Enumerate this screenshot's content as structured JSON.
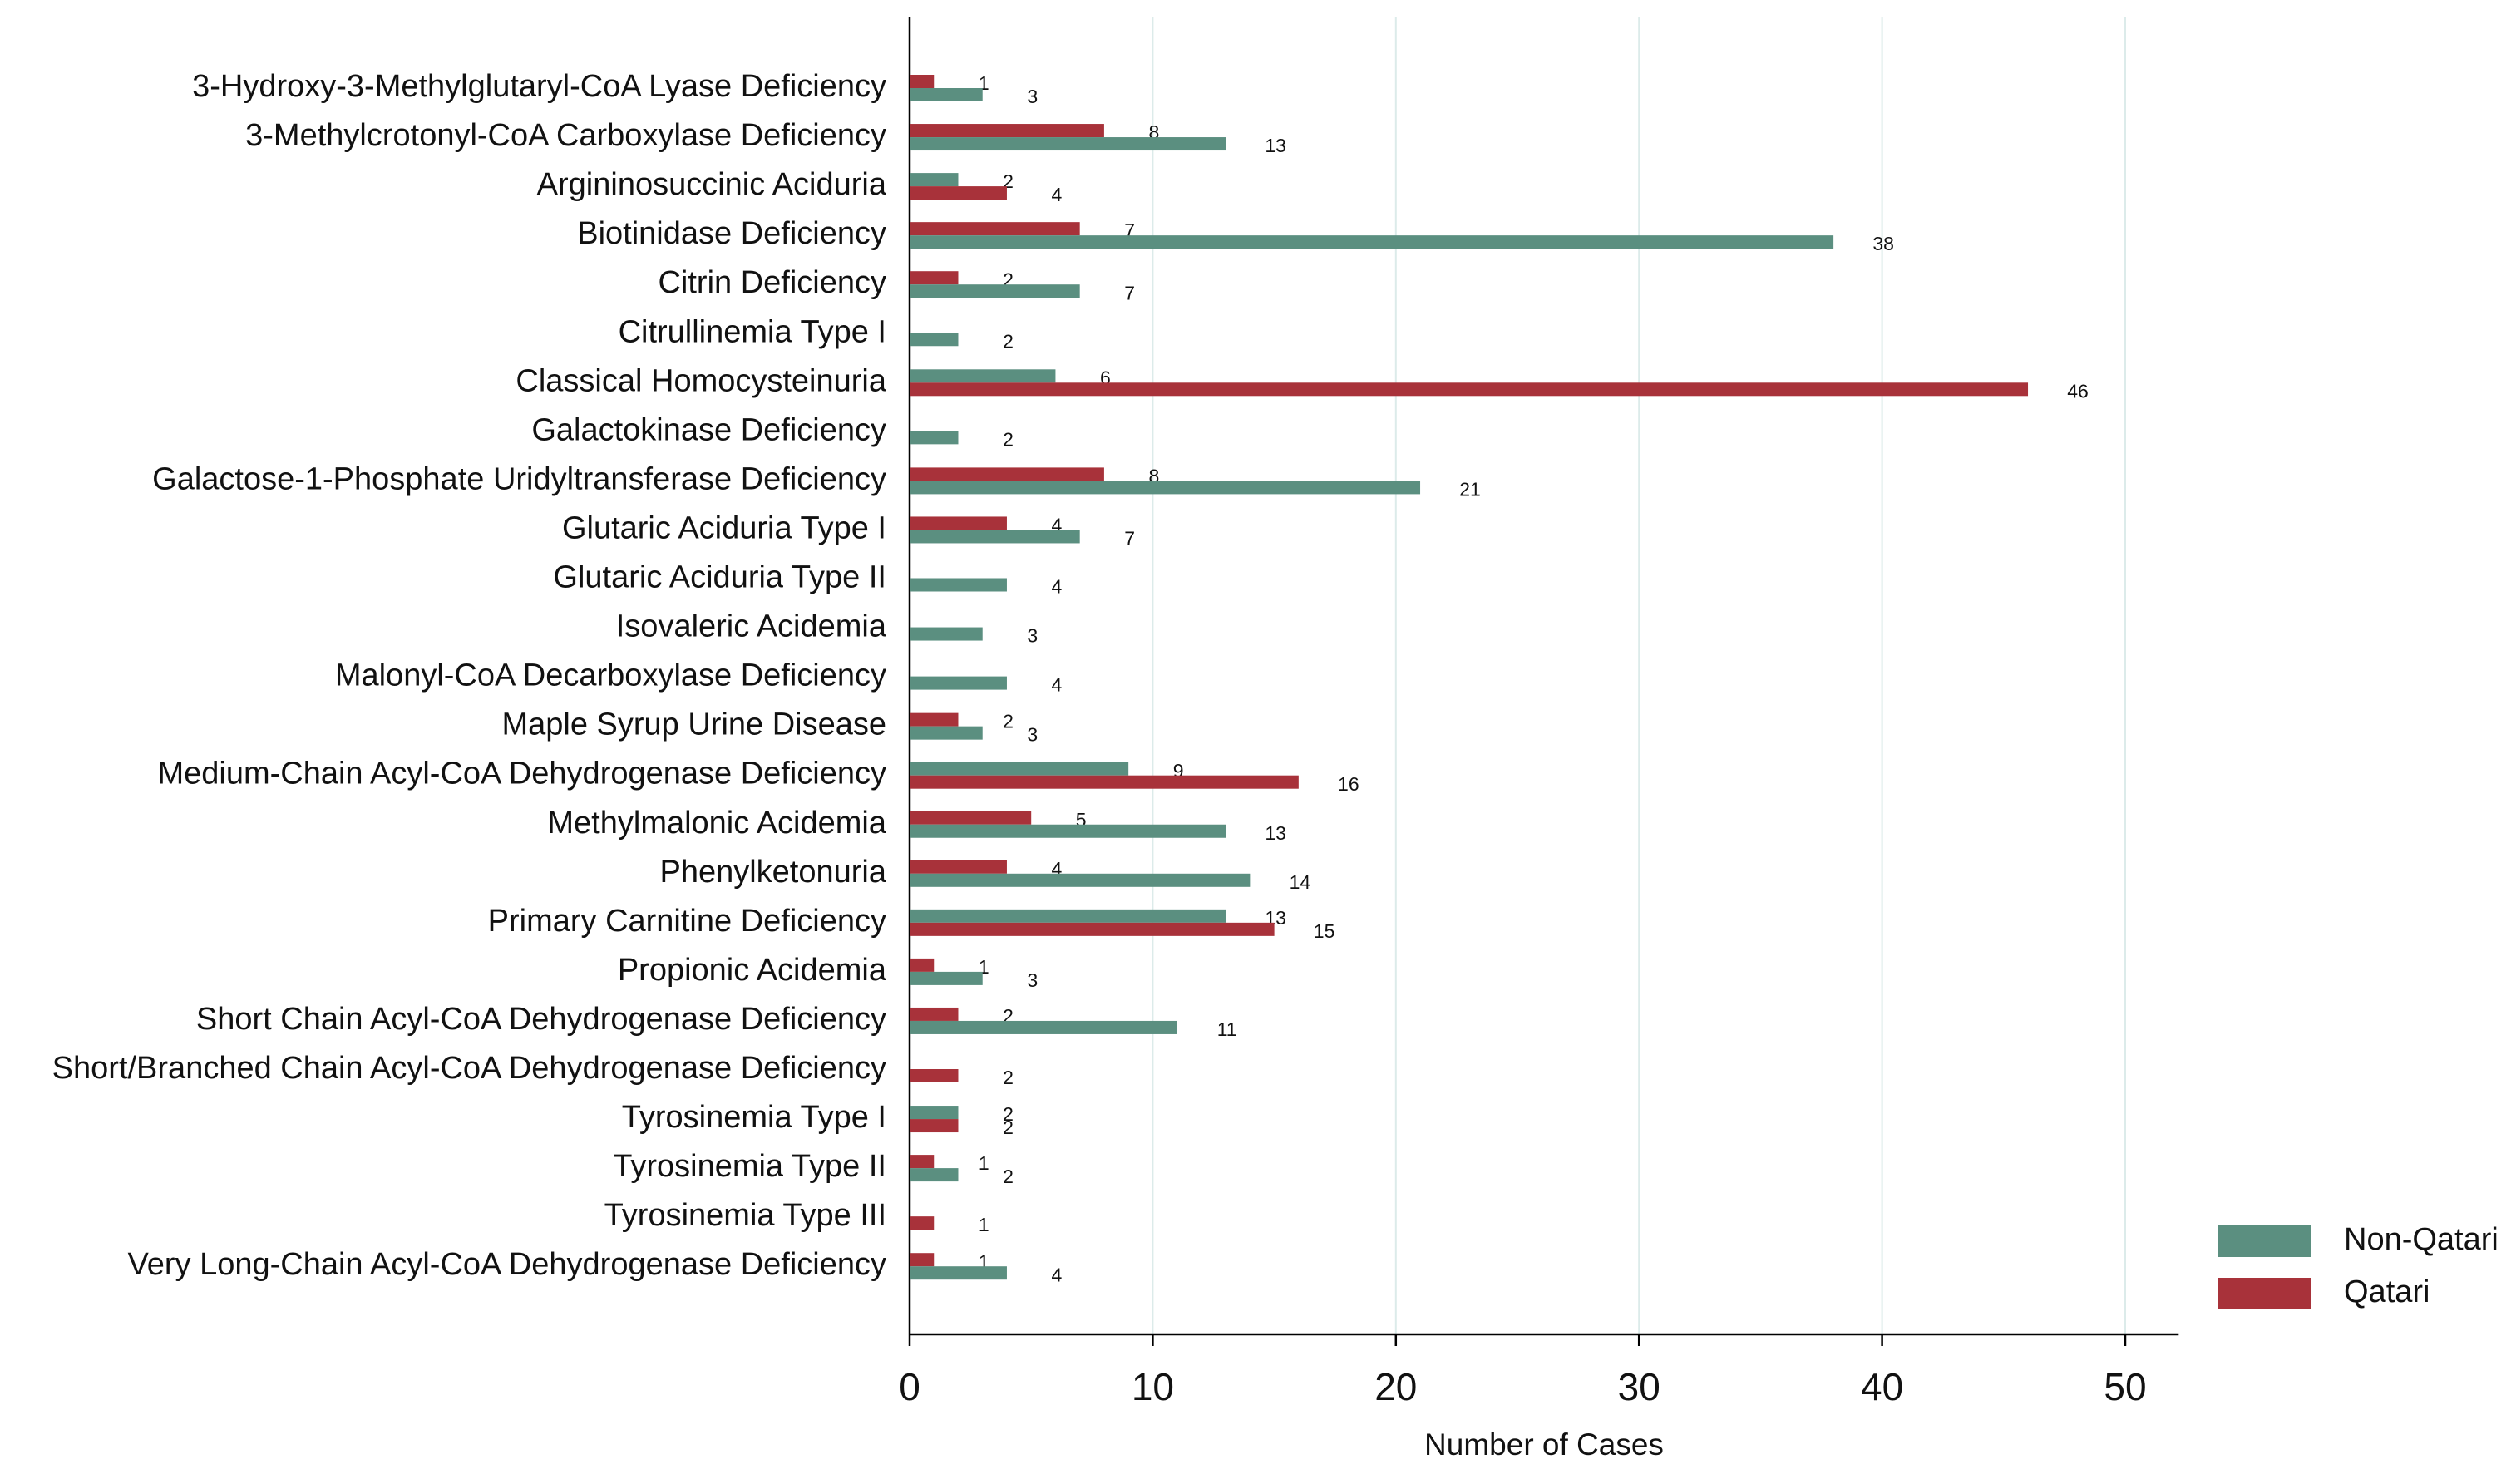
{
  "chart_data": {
    "type": "bar",
    "orientation": "horizontal",
    "x_label": "Number of Cases",
    "categories": [
      "3-Hydroxy-3-Methylglutaryl-CoA Lyase Deficiency",
      "3-Methylcrotonyl-CoA Carboxylase Deficiency",
      "Argininosuccinic Aciduria",
      "Biotinidase Deficiency",
      "Citrin Deficiency",
      "Citrullinemia Type I",
      "Classical Homocysteinuria",
      "Galactokinase Deficiency",
      "Galactose-1-Phosphate Uridyltransferase Deficiency",
      "Glutaric Aciduria Type I",
      "Glutaric Aciduria Type II",
      "Isovaleric Acidemia",
      "Malonyl-CoA Decarboxylase Deficiency",
      "Maple Syrup Urine Disease",
      "Medium-Chain Acyl-CoA Dehydrogenase Deficiency",
      "Methylmalonic Acidemia",
      "Phenylketonuria",
      "Primary Carnitine Deficiency",
      "Propionic Acidemia",
      "Short Chain Acyl-CoA Dehydrogenase Deficiency",
      "Short/Branched Chain Acyl-CoA Dehydrogenase Deficiency",
      "Tyrosinemia Type I",
      "Tyrosinemia Type II",
      "Tyrosinemia Type III",
      "Very Long-Chain Acyl-CoA Dehydrogenase Deficiency"
    ],
    "series": [
      {
        "name": "Non-Qatari",
        "color": "#5b8f80",
        "values": [
          3,
          13,
          2,
          38,
          7,
          2,
          6,
          2,
          21,
          7,
          4,
          3,
          4,
          3,
          9,
          13,
          14,
          13,
          3,
          11,
          null,
          2,
          2,
          null,
          4
        ]
      },
      {
        "name": "Qatari",
        "color": "#a8323a",
        "values": [
          1,
          8,
          4,
          7,
          2,
          null,
          46,
          null,
          8,
          4,
          null,
          null,
          null,
          2,
          16,
          5,
          4,
          15,
          1,
          2,
          2,
          2,
          1,
          1,
          1
        ]
      }
    ],
    "xlim": [
      0,
      52.2
    ],
    "xticks": [
      0,
      10,
      20,
      30,
      40,
      50
    ],
    "grid": true,
    "legend": "lower right"
  }
}
